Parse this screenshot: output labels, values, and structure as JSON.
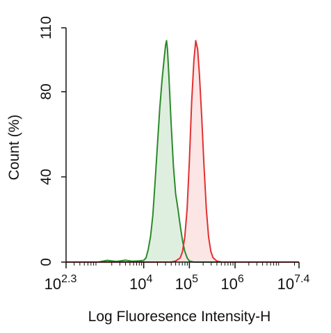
{
  "chart_data": {
    "type": "area",
    "title": "",
    "xlabel": "Log Fluoresence Intensity-H",
    "ylabel": "Count  (%)",
    "x_scale": "log10",
    "xlim_log10": [
      2.3,
      7.4
    ],
    "ylim": [
      0,
      110
    ],
    "x_ticks": [
      {
        "base": "10",
        "exp": "2.3"
      },
      {
        "base": "10",
        "exp": "4"
      },
      {
        "base": "10",
        "exp": "5"
      },
      {
        "base": "10",
        "exp": "6"
      },
      {
        "base": "10",
        "exp": "7.4"
      }
    ],
    "y_ticks": [
      "0",
      "40",
      "80",
      "110"
    ],
    "grid": false,
    "legend": "none",
    "series": [
      {
        "color": "#2a8a2a",
        "fill": "#d9ecd9",
        "points": [
          [
            2.3,
            0
          ],
          [
            3.0,
            0
          ],
          [
            3.2,
            0.8
          ],
          [
            3.4,
            0.3
          ],
          [
            3.6,
            0.9
          ],
          [
            3.75,
            0.4
          ],
          [
            3.9,
            0.6
          ],
          [
            4.0,
            0.8
          ],
          [
            4.05,
            2
          ],
          [
            4.1,
            6
          ],
          [
            4.15,
            12
          ],
          [
            4.2,
            22
          ],
          [
            4.25,
            38
          ],
          [
            4.3,
            55
          ],
          [
            4.35,
            72
          ],
          [
            4.4,
            85
          ],
          [
            4.45,
            96
          ],
          [
            4.48,
            102
          ],
          [
            4.5,
            104
          ],
          [
            4.52,
            100
          ],
          [
            4.55,
            88
          ],
          [
            4.6,
            65
          ],
          [
            4.65,
            45
          ],
          [
            4.7,
            32
          ],
          [
            4.75,
            25
          ],
          [
            4.8,
            17
          ],
          [
            4.85,
            10
          ],
          [
            4.9,
            5
          ],
          [
            4.95,
            2
          ],
          [
            5.0,
            0.5
          ],
          [
            5.1,
            0
          ],
          [
            7.4,
            0
          ]
        ]
      },
      {
        "color": "#e23030",
        "fill": "#fbe0e0",
        "points": [
          [
            2.3,
            0
          ],
          [
            4.6,
            0
          ],
          [
            4.7,
            0.5
          ],
          [
            4.8,
            2
          ],
          [
            4.85,
            5
          ],
          [
            4.9,
            12
          ],
          [
            4.95,
            25
          ],
          [
            5.0,
            48
          ],
          [
            5.05,
            75
          ],
          [
            5.1,
            95
          ],
          [
            5.14,
            104
          ],
          [
            5.18,
            100
          ],
          [
            5.22,
            88
          ],
          [
            5.27,
            68
          ],
          [
            5.32,
            45
          ],
          [
            5.37,
            25
          ],
          [
            5.42,
            12
          ],
          [
            5.47,
            5
          ],
          [
            5.52,
            2
          ],
          [
            5.6,
            0.5
          ],
          [
            5.7,
            0
          ],
          [
            7.4,
            0
          ]
        ]
      }
    ]
  }
}
